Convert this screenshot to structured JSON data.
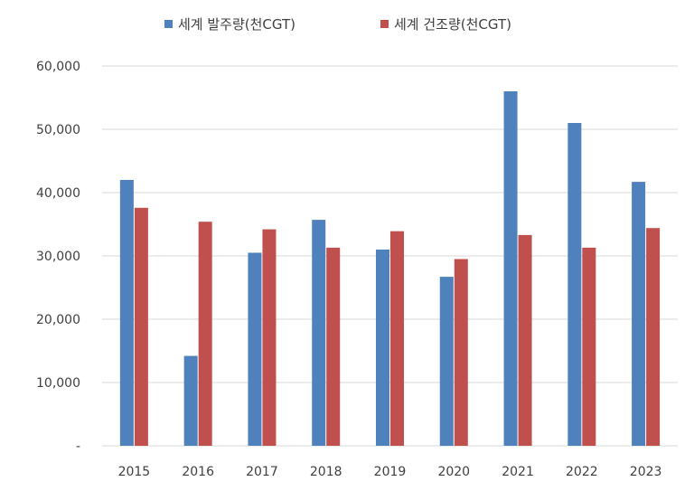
{
  "chart_data": {
    "type": "bar",
    "title": "",
    "xlabel": "",
    "ylabel": "",
    "categories": [
      "2015",
      "2016",
      "2017",
      "2018",
      "2019",
      "2020",
      "2021",
      "2022",
      "2023"
    ],
    "series": [
      {
        "name": "세계 발주량(천CGT)",
        "color": "#4f81bd",
        "values": [
          42000,
          14200,
          30500,
          35700,
          31000,
          26700,
          56000,
          51000,
          41700
        ]
      },
      {
        "name": "세계 건조량(천CGT)",
        "color": "#c0504d",
        "values": [
          37600,
          35400,
          34200,
          31300,
          33900,
          29500,
          33300,
          31300,
          34400
        ]
      }
    ],
    "ylim": [
      0,
      60000
    ],
    "yticks": [
      0,
      10000,
      20000,
      30000,
      40000,
      50000,
      60000
    ],
    "ytick_labels": [
      "-",
      "10,000",
      "20,000",
      "30,000",
      "40,000",
      "50,000",
      "60,000"
    ],
    "grid": true,
    "gridline_color": "#d9d9d9",
    "legend_position": "top-center"
  }
}
